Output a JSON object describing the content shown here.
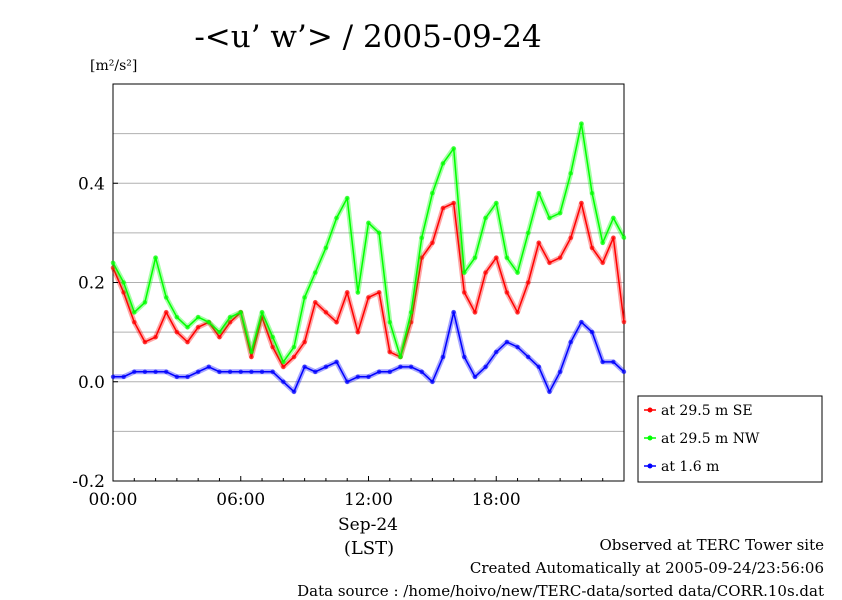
{
  "chart_data": {
    "type": "line",
    "title": "-<u’ w’> / 2005-09-24",
    "ylabel_unit": "[m²/s²]",
    "ylim": [
      -0.2,
      0.6
    ],
    "yticks": [
      -0.2,
      0.0,
      0.2,
      0.4
    ],
    "ytick_labels": [
      "-0.2",
      "0.0",
      "0.2",
      "0.4"
    ],
    "y_gridlines": [
      -0.1,
      0.0,
      0.1,
      0.2,
      0.3,
      0.4,
      0.5
    ],
    "xlim_hours": [
      0,
      24
    ],
    "xticks_hours": [
      0,
      6,
      12,
      18
    ],
    "xtick_labels": [
      "00:00",
      "06:00",
      "12:00",
      "18:00"
    ],
    "x_date_label": "Sep-24",
    "x_unit_label": "(LST)",
    "x_hours": [
      0,
      0.5,
      1,
      1.5,
      2,
      2.5,
      3,
      3.5,
      4,
      4.5,
      5,
      5.5,
      6,
      6.5,
      7,
      7.5,
      8,
      8.5,
      9,
      9.5,
      10,
      10.5,
      11,
      11.5,
      12,
      12.5,
      13,
      13.5,
      14,
      14.5,
      15,
      15.5,
      16,
      16.5,
      17,
      17.5,
      18,
      18.5,
      19,
      19.5,
      20,
      20.5,
      21,
      21.5,
      22,
      22.5,
      23,
      23.5,
      24
    ],
    "series": [
      {
        "name": "at 29.5 m SE",
        "color": "#ff0000",
        "marker": "dot-dash",
        "values": [
          0.23,
          0.18,
          0.12,
          0.08,
          0.09,
          0.14,
          0.1,
          0.08,
          0.11,
          0.12,
          0.09,
          0.12,
          0.14,
          0.05,
          0.13,
          0.07,
          0.03,
          0.05,
          0.08,
          0.16,
          0.14,
          0.12,
          0.18,
          0.1,
          0.17,
          0.18,
          0.06,
          0.05,
          0.12,
          0.25,
          0.28,
          0.35,
          0.36,
          0.18,
          0.14,
          0.22,
          0.25,
          0.18,
          0.14,
          0.2,
          0.28,
          0.24,
          0.25,
          0.29,
          0.36,
          0.27,
          0.24,
          0.29,
          0.12
        ]
      },
      {
        "name": "at 29.5 m NW",
        "color": "#00ff00",
        "marker": "dot-dash",
        "values": [
          0.24,
          0.2,
          0.14,
          0.16,
          0.25,
          0.17,
          0.13,
          0.11,
          0.13,
          0.12,
          0.1,
          0.13,
          0.14,
          0.06,
          0.14,
          0.09,
          0.04,
          0.07,
          0.17,
          0.22,
          0.27,
          0.33,
          0.37,
          0.18,
          0.32,
          0.3,
          0.12,
          0.05,
          0.14,
          0.29,
          0.38,
          0.44,
          0.47,
          0.22,
          0.25,
          0.33,
          0.36,
          0.25,
          0.22,
          0.3,
          0.38,
          0.33,
          0.34,
          0.42,
          0.52,
          0.38,
          0.28,
          0.33,
          0.29
        ]
      },
      {
        "name": "at 1.6 m",
        "color": "#0000ff",
        "marker": "dot-dash",
        "values": [
          0.01,
          0.01,
          0.02,
          0.02,
          0.02,
          0.02,
          0.01,
          0.01,
          0.02,
          0.03,
          0.02,
          0.02,
          0.02,
          0.02,
          0.02,
          0.02,
          0.0,
          -0.02,
          0.03,
          0.02,
          0.03,
          0.04,
          0.0,
          0.01,
          0.01,
          0.02,
          0.02,
          0.03,
          0.03,
          0.02,
          0.0,
          0.05,
          0.14,
          0.05,
          0.01,
          0.03,
          0.06,
          0.08,
          0.07,
          0.05,
          0.03,
          -0.02,
          0.02,
          0.08,
          0.12,
          0.1,
          0.04,
          0.04,
          0.02
        ]
      }
    ],
    "legend_position": "right, below plot middle",
    "grid": "horizontal only"
  },
  "footer": {
    "line1": "Observed at TERC Tower site",
    "line2": "Created Automatically at 2005-09-24/23:56:06",
    "line3": "Data source : /home/hoivo/new/TERC-data/sorted data/CORR.10s.dat"
  }
}
